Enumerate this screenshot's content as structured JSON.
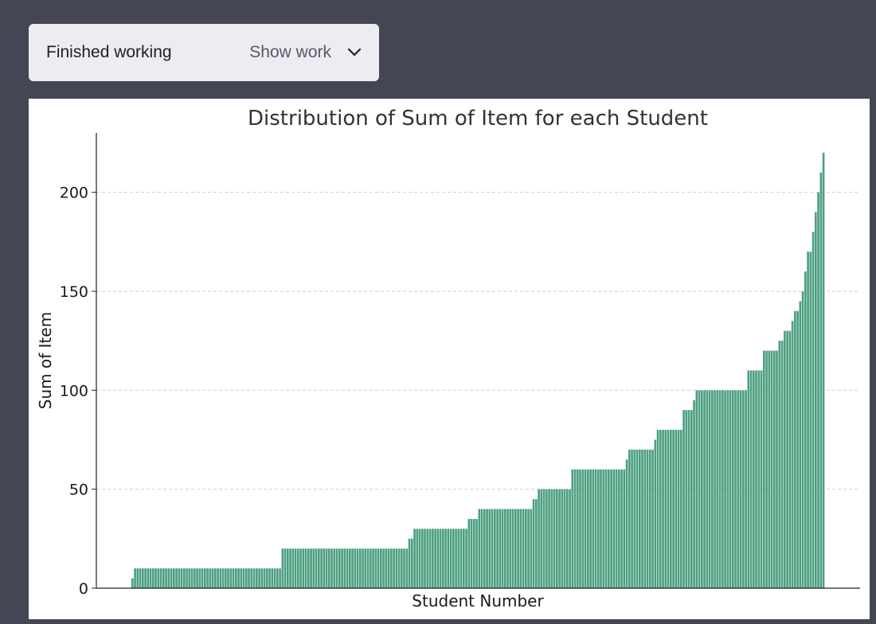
{
  "panel": {
    "status": "Finished working",
    "toggle_label": "Show work",
    "toggle_icon": "chevron-down-icon"
  },
  "chart_data": {
    "type": "bar",
    "title": "Distribution of Sum of Item for each Student",
    "xlabel": "Student Number",
    "ylabel": "Sum of Item",
    "ylim": [
      0,
      230
    ],
    "yticks": [
      0,
      50,
      100,
      150,
      200
    ],
    "grid": "horizontal dashed",
    "bar_color": "#4c9f7f",
    "sorted": "ascending",
    "bin_order": "ascending",
    "value_bins": [
      {
        "value": 5,
        "count": 1
      },
      {
        "value": 10,
        "count": 57
      },
      {
        "value": 20,
        "count": 49
      },
      {
        "value": 25,
        "count": 2
      },
      {
        "value": 30,
        "count": 21
      },
      {
        "value": 35,
        "count": 4
      },
      {
        "value": 40,
        "count": 21
      },
      {
        "value": 45,
        "count": 2
      },
      {
        "value": 50,
        "count": 13
      },
      {
        "value": 60,
        "count": 21
      },
      {
        "value": 65,
        "count": 1
      },
      {
        "value": 70,
        "count": 10
      },
      {
        "value": 75,
        "count": 1
      },
      {
        "value": 80,
        "count": 10
      },
      {
        "value": 90,
        "count": 4
      },
      {
        "value": 95,
        "count": 1
      },
      {
        "value": 100,
        "count": 20
      },
      {
        "value": 110,
        "count": 6
      },
      {
        "value": 120,
        "count": 6
      },
      {
        "value": 125,
        "count": 2
      },
      {
        "value": 130,
        "count": 3
      },
      {
        "value": 135,
        "count": 1
      },
      {
        "value": 140,
        "count": 2
      },
      {
        "value": 145,
        "count": 1
      },
      {
        "value": 150,
        "count": 1
      },
      {
        "value": 160,
        "count": 1
      },
      {
        "value": 170,
        "count": 2
      },
      {
        "value": 180,
        "count": 1
      },
      {
        "value": 190,
        "count": 1
      },
      {
        "value": 200,
        "count": 1
      },
      {
        "value": 210,
        "count": 1
      },
      {
        "value": 220,
        "count": 1
      }
    ]
  }
}
